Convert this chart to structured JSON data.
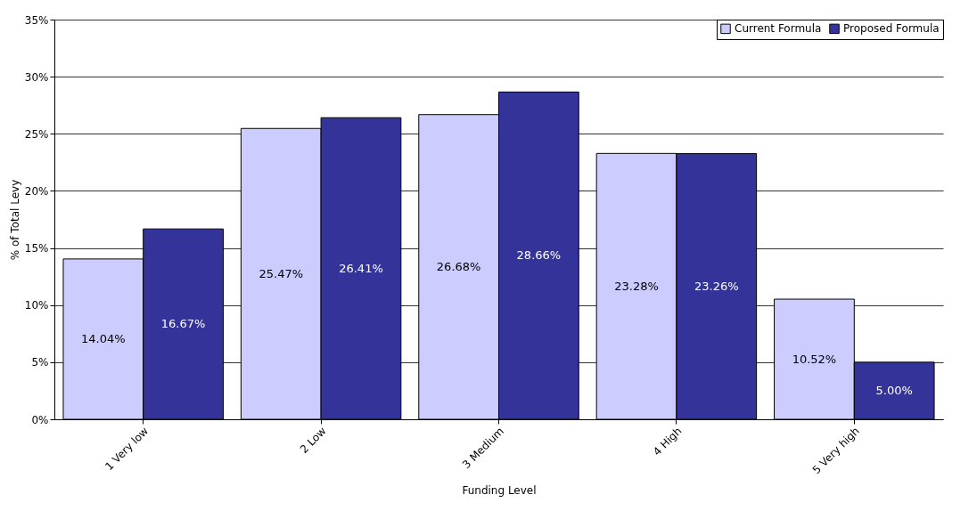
{
  "chart_data": {
    "type": "bar",
    "xlabel": "Funding Level",
    "ylabel": "% of Total Levy",
    "categories": [
      "1 Very low",
      "2 Low",
      "3 Medium",
      "4 High",
      "5 Very high"
    ],
    "series": [
      {
        "name": "Current Formula",
        "color": "#ccccff",
        "values": [
          14.04,
          25.47,
          26.68,
          23.28,
          10.52
        ],
        "value_labels": [
          "14.04%",
          "25.47%",
          "26.68%",
          "23.28%",
          "10.52%"
        ]
      },
      {
        "name": "Proposed Formula",
        "color": "#333399",
        "values": [
          16.67,
          26.41,
          28.66,
          23.26,
          5.0
        ],
        "value_labels": [
          "16.67%",
          "26.41%",
          "28.66%",
          "23.26%",
          "5.00%"
        ]
      }
    ],
    "ylim": [
      0,
      35
    ],
    "yticks": [
      {
        "value": 0,
        "label": "0%"
      },
      {
        "value": 5,
        "label": "5%"
      },
      {
        "value": 10,
        "label": "10%"
      },
      {
        "value": 15,
        "label": "15%"
      },
      {
        "value": 20,
        "label": "20%"
      },
      {
        "value": 25,
        "label": "25%"
      },
      {
        "value": 30,
        "label": "30%"
      },
      {
        "value": 35,
        "label": "35%"
      }
    ],
    "grid": "y",
    "legend": "top right"
  }
}
